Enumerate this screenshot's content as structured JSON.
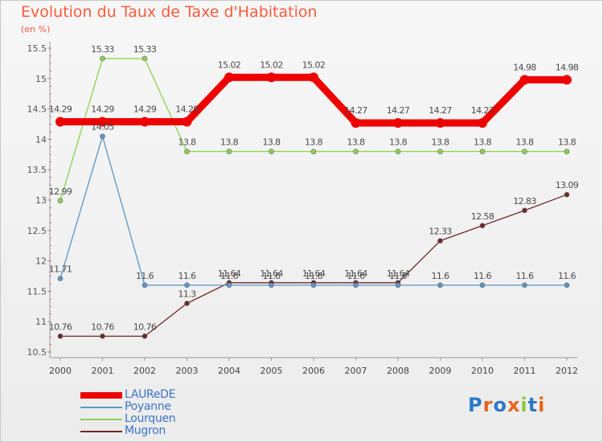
{
  "title": "Evolution du Taux de Taxe d'Habitation",
  "unit": "(en %)",
  "logo": {
    "text": "Proxiti",
    "colors": [
      "#2d78c8",
      "#e8641e",
      "#2d78c8",
      "#e8641e",
      "#8cc83c",
      "#2d78c8",
      "#e8641e"
    ]
  },
  "chart_data": {
    "type": "line",
    "title": "Evolution du Taux de Taxe d'Habitation",
    "ylabel": "(en %)",
    "xlabel": "",
    "categories": [
      "2000",
      "2001",
      "2002",
      "2003",
      "2004",
      "2005",
      "2006",
      "2007",
      "2008",
      "2009",
      "2010",
      "2011",
      "2012"
    ],
    "ylim": [
      10.5,
      15.5
    ],
    "yticks": [
      "10.5",
      "11",
      "11.5",
      "12",
      "12.5",
      "13",
      "13.5",
      "14",
      "14.5",
      "15",
      "15.5"
    ],
    "grid": false,
    "legend_position": "bottom-left",
    "series": [
      {
        "name": "LAUReDE",
        "color": "#ee0000",
        "values": [
          14.29,
          14.29,
          14.29,
          14.29,
          15.02,
          15.02,
          15.02,
          14.27,
          14.27,
          14.27,
          14.27,
          14.98,
          14.98
        ],
        "labels": [
          "14.29",
          "14.29",
          "14.29",
          "14.29",
          "15.02",
          "15.02",
          "15.02",
          "14.27",
          "14.27",
          "14.27",
          "14.27",
          "14.98",
          "14.98"
        ]
      },
      {
        "name": "Poyanne",
        "color": "#5a96c8",
        "values": [
          11.71,
          14.05,
          11.6,
          11.6,
          11.6,
          11.6,
          11.6,
          11.6,
          11.6,
          11.6,
          11.6,
          11.6,
          11.6
        ],
        "labels": [
          "11.71",
          "14.05",
          "11.6",
          "11.6",
          "11.6",
          "11.6",
          "11.6",
          "11.6",
          "11.6",
          "11.6",
          "11.6",
          "11.6",
          "11.6"
        ]
      },
      {
        "name": "Lourquen",
        "color": "#8cd250",
        "values": [
          12.99,
          15.33,
          15.33,
          13.8,
          13.8,
          13.8,
          13.8,
          13.8,
          13.8,
          13.8,
          13.8,
          13.8,
          13.8
        ],
        "labels": [
          "12.99",
          "15.33",
          "15.33",
          "13.8",
          "13.8",
          "13.8",
          "13.8",
          "13.8",
          "13.8",
          "13.8",
          "13.8",
          "13.8",
          "13.8"
        ]
      },
      {
        "name": "Mugron",
        "color": "#6e2828",
        "values": [
          10.76,
          10.76,
          10.76,
          11.3,
          11.64,
          11.64,
          11.64,
          11.64,
          11.64,
          12.33,
          12.58,
          12.83,
          13.09
        ],
        "labels": [
          "10.76",
          "10.76",
          "10.76",
          "11.3",
          "11.64",
          "11.64",
          "11.64",
          "11.64",
          "11.64",
          "12.33",
          "12.58",
          "12.83",
          "13.09"
        ]
      }
    ]
  }
}
